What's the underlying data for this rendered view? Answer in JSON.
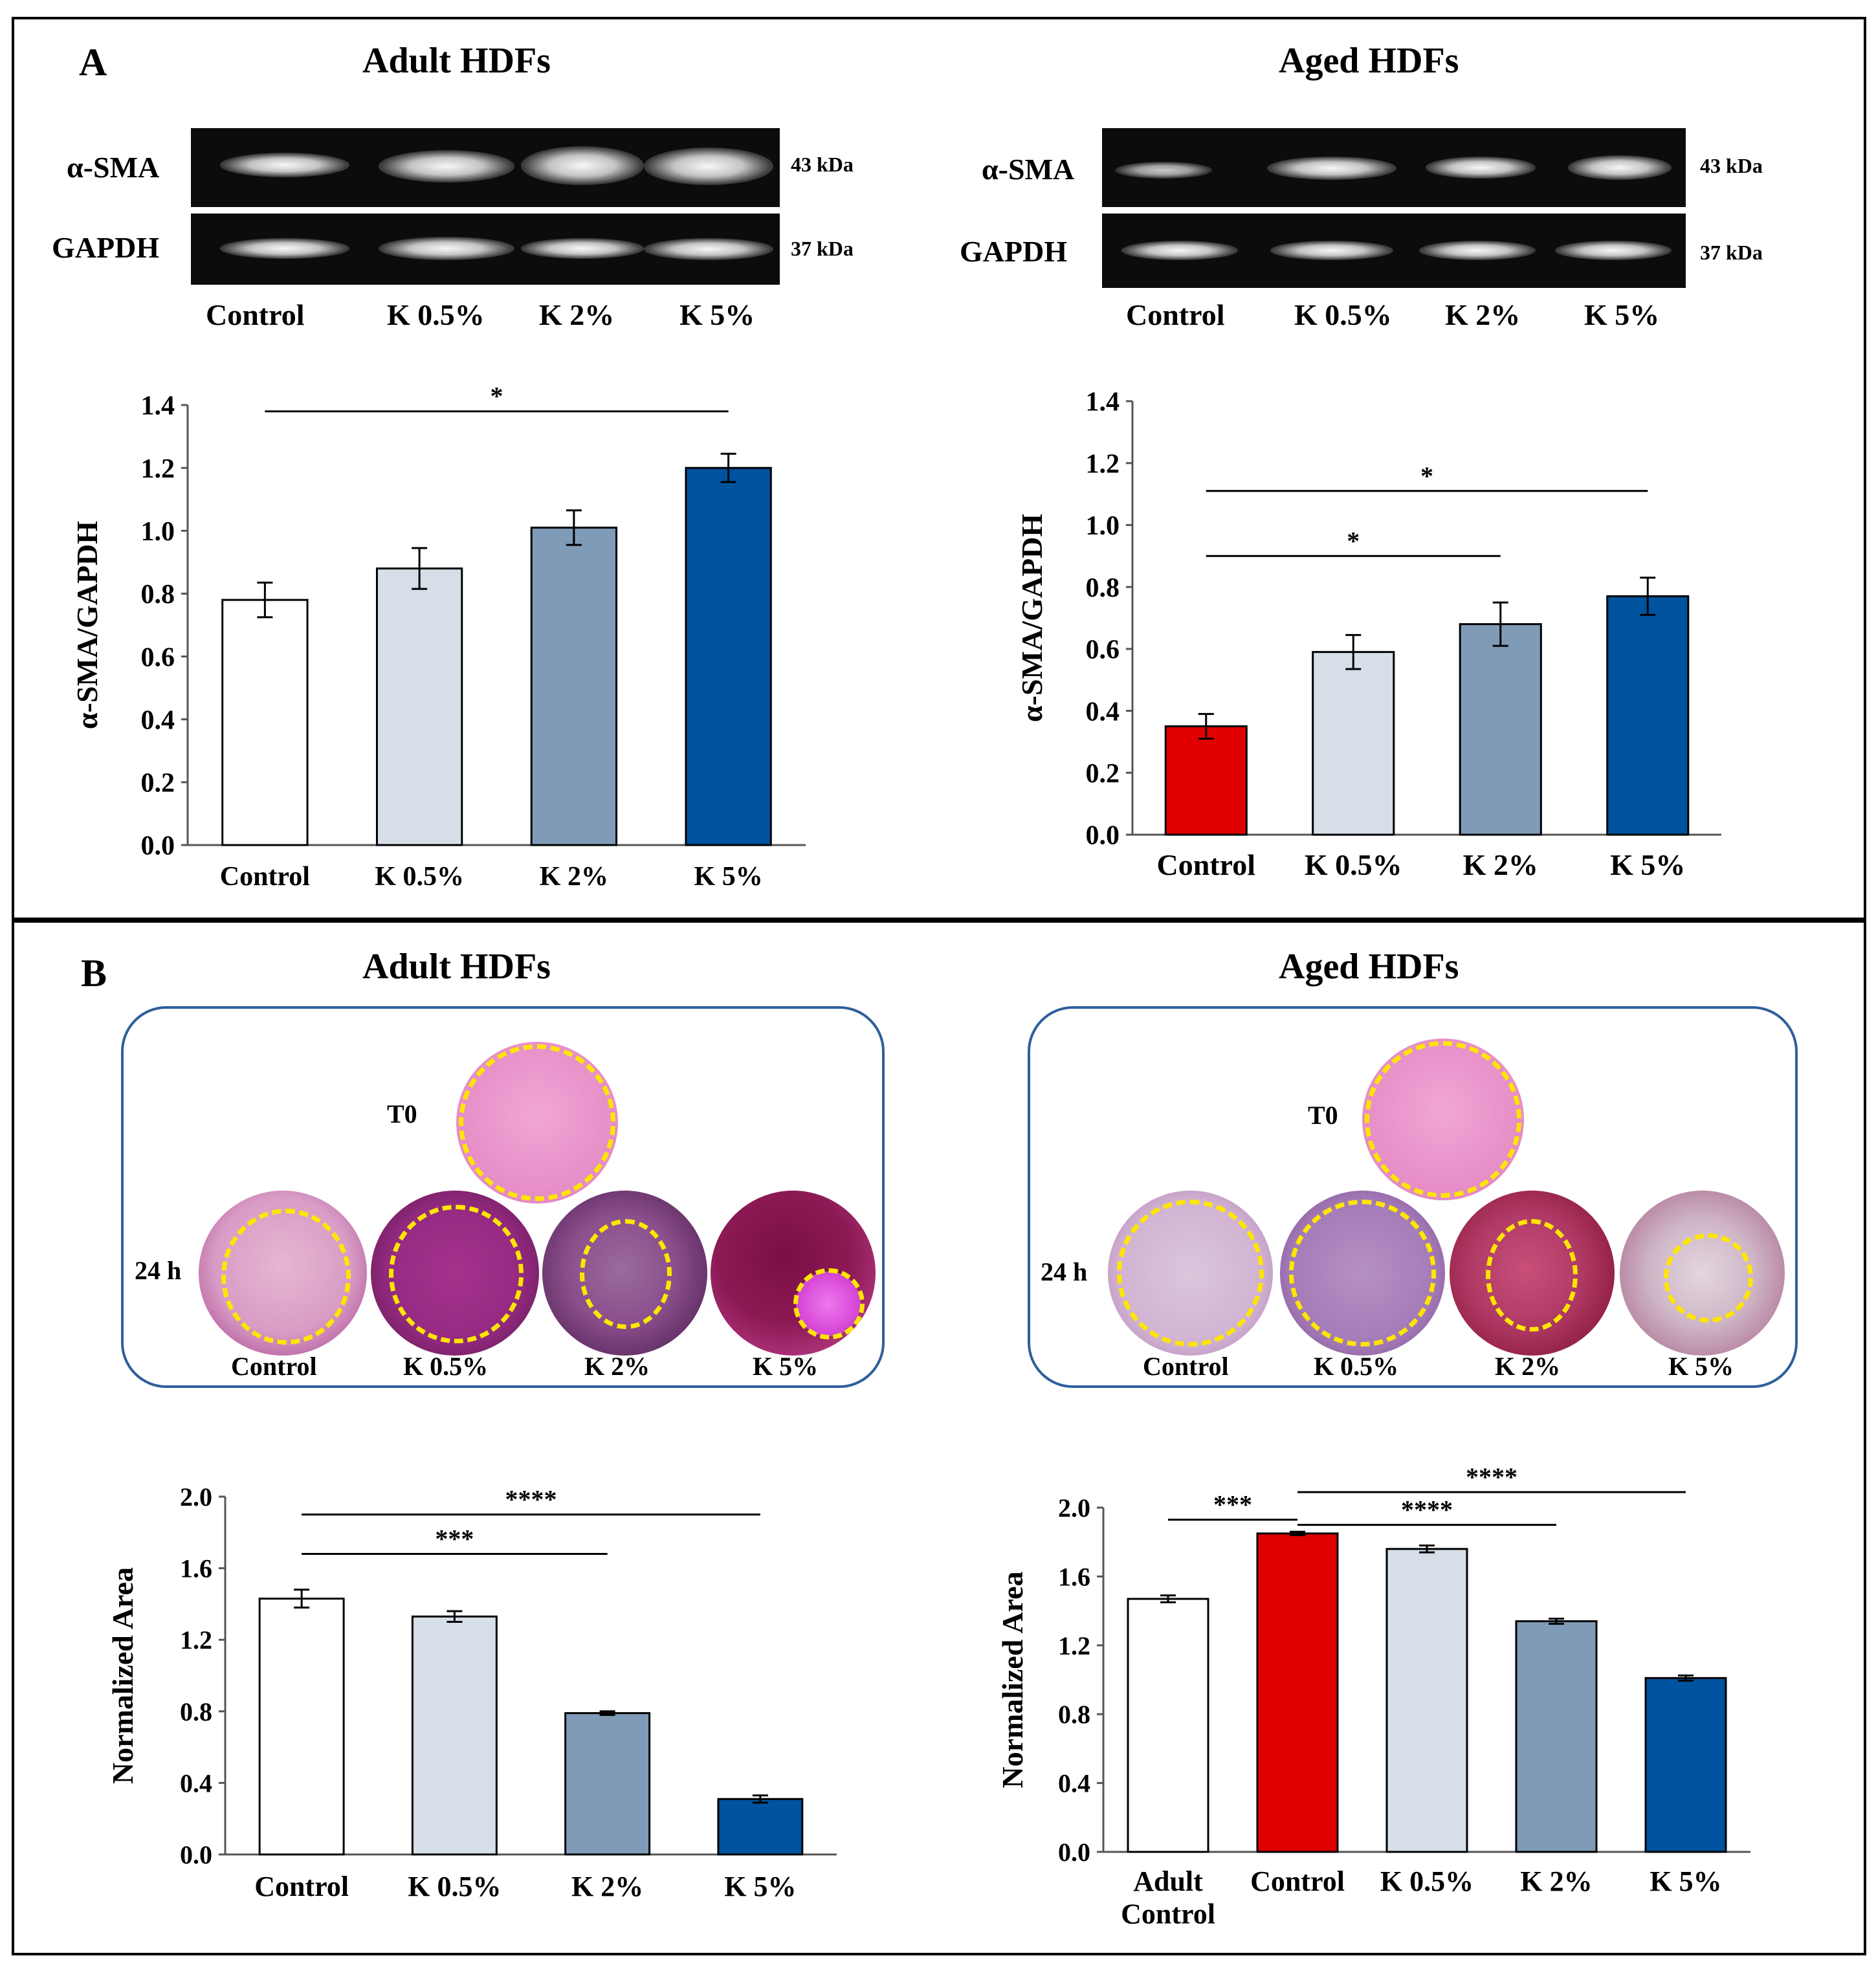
{
  "panel_a": {
    "letter": "A",
    "left_title": "Adult HDFs",
    "right_title": "Aged HDFs",
    "blot_rows": [
      "α-SMA",
      "GAPDH"
    ],
    "kda": [
      "43 kDa",
      "37 kDa"
    ],
    "lanes": [
      "Control",
      "K 0.5%",
      "K 2%",
      "K 5%"
    ]
  },
  "panel_b": {
    "letter": "B",
    "left_title": "Adult HDFs",
    "right_title": "Aged HDFs",
    "t0_label": "T0",
    "t24_label": "24 h",
    "dish_labels": [
      "Control",
      "K 0.5%",
      "K 2%",
      "K 5%"
    ]
  },
  "colors": {
    "control_white": "#ffffff",
    "aged_control_red": "#e00000",
    "k05": "#d6dfe8",
    "k2": "#7f9bb8",
    "k5": "#00539f",
    "dish_border": "#2e5f9a",
    "ring": "#ffe600"
  },
  "chart_data": [
    {
      "id": "a_adult",
      "type": "bar",
      "title": "Adult HDFs",
      "categories": [
        "Control",
        "K 0.5%",
        "K 2%",
        "K 5%"
      ],
      "values": [
        0.78,
        0.88,
        1.01,
        1.2
      ],
      "errors": [
        0.055,
        0.065,
        0.055,
        0.045
      ],
      "colors": [
        "#ffffff",
        "#d6dfe8",
        "#7f9bb8",
        "#00539f"
      ],
      "ylabel": "α-SMA/GAPDH",
      "ylim": [
        0,
        1.4
      ],
      "yticks": [
        "0.0",
        "0.2",
        "0.4",
        "0.6",
        "0.8",
        "1.0",
        "1.2",
        "1.4"
      ],
      "significance": [
        {
          "from": 0,
          "to": 3,
          "y": 1.38,
          "label": "*"
        }
      ]
    },
    {
      "id": "a_aged",
      "type": "bar",
      "title": "Aged HDFs",
      "categories": [
        "Control",
        "K  0.5%",
        "K 2%",
        "K 5%"
      ],
      "values": [
        0.35,
        0.59,
        0.68,
        0.77
      ],
      "errors": [
        0.04,
        0.055,
        0.07,
        0.06
      ],
      "colors": [
        "#e00000",
        "#d6dfe8",
        "#7f9bb8",
        "#00539f"
      ],
      "ylabel": "α-SMA/GAPDH",
      "ylim": [
        0,
        1.4
      ],
      "yticks": [
        "0.0",
        "0.2",
        "0.4",
        "0.6",
        "0.8",
        "1.0",
        "1.2",
        "1.4"
      ],
      "significance": [
        {
          "from": 0,
          "to": 3,
          "y": 1.11,
          "label": "*"
        },
        {
          "from": 0,
          "to": 2,
          "y": 0.9,
          "label": "*"
        }
      ]
    },
    {
      "id": "b_adult",
      "type": "bar",
      "title": "Adult HDFs",
      "categories": [
        "Control",
        "K 0.5%",
        "K 2%",
        "K 5%"
      ],
      "values": [
        1.43,
        1.33,
        0.79,
        0.31
      ],
      "errors": [
        0.05,
        0.03,
        0.01,
        0.02
      ],
      "colors": [
        "#ffffff",
        "#d6dfe8",
        "#7f9bb8",
        "#00539f"
      ],
      "ylabel": "Normalized  Area",
      "ylim": [
        0,
        2.0
      ],
      "yticks": [
        "0.0",
        "0.4",
        "0.8",
        "1.2",
        "1.6",
        "2.0"
      ],
      "significance": [
        {
          "from": 0,
          "to": 3,
          "y": 1.9,
          "label": "****"
        },
        {
          "from": 0,
          "to": 2,
          "y": 1.68,
          "label": "***"
        }
      ]
    },
    {
      "id": "b_aged",
      "type": "bar",
      "title": "Aged HDFs",
      "categories": [
        "Adult\nControl",
        "Control",
        "K 0.5%",
        "K 2%",
        "K 5%"
      ],
      "values": [
        1.47,
        1.85,
        1.76,
        1.34,
        1.01
      ],
      "errors": [
        0.02,
        0.01,
        0.02,
        0.015,
        0.015
      ],
      "colors": [
        "#ffffff",
        "#e00000",
        "#d6dfe8",
        "#7f9bb8",
        "#00539f"
      ],
      "ylabel": "Normalized  Area",
      "ylim": [
        0,
        2.0
      ],
      "yticks": [
        "0.0",
        "0.4",
        "0.8",
        "1.2",
        "1.6",
        "2.0"
      ],
      "significance": [
        {
          "from": 0,
          "to": 1,
          "y": 1.93,
          "label": "***"
        },
        {
          "from": 1,
          "to": 4,
          "y": 2.09,
          "label": "****"
        },
        {
          "from": 1,
          "to": 3,
          "y": 1.9,
          "label": "****"
        }
      ]
    }
  ]
}
